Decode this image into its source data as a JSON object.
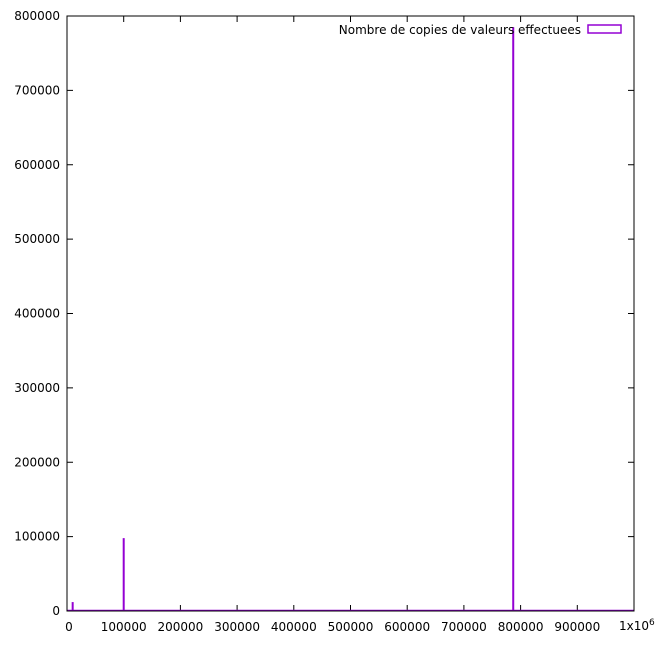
{
  "chart_data": {
    "type": "bar",
    "title": "",
    "xlabel": "",
    "ylabel": "",
    "xlim": [
      0,
      1000000
    ],
    "ylim": [
      0,
      800000
    ],
    "x_ticks": [
      {
        "value": 0,
        "label": "0"
      },
      {
        "value": 100000,
        "label": "100000"
      },
      {
        "value": 200000,
        "label": "200000"
      },
      {
        "value": 300000,
        "label": "300000"
      },
      {
        "value": 400000,
        "label": "400000"
      },
      {
        "value": 500000,
        "label": "500000"
      },
      {
        "value": 600000,
        "label": "600000"
      },
      {
        "value": 700000,
        "label": "700000"
      },
      {
        "value": 800000,
        "label": "800000"
      },
      {
        "value": 900000,
        "label": "900000"
      }
    ],
    "x_end_label_base": "1x10",
    "x_end_label_exp": "6",
    "y_ticks": [
      {
        "value": 0,
        "label": "0"
      },
      {
        "value": 100000,
        "label": "100000"
      },
      {
        "value": 200000,
        "label": "200000"
      },
      {
        "value": 300000,
        "label": "300000"
      },
      {
        "value": 400000,
        "label": "400000"
      },
      {
        "value": 500000,
        "label": "500000"
      },
      {
        "value": 600000,
        "label": "600000"
      },
      {
        "value": 700000,
        "label": "700000"
      },
      {
        "value": 800000,
        "label": "800000"
      }
    ],
    "grid": false,
    "legend_position": "top-right",
    "series": [
      {
        "name": "Nombre de copies de valeurs effectuees",
        "color": "#9400d3",
        "points": [
          {
            "x": 10000,
            "y": 12000
          },
          {
            "x": 100000,
            "y": 98000
          },
          {
            "x": 787000,
            "y": 785000
          }
        ]
      }
    ]
  }
}
